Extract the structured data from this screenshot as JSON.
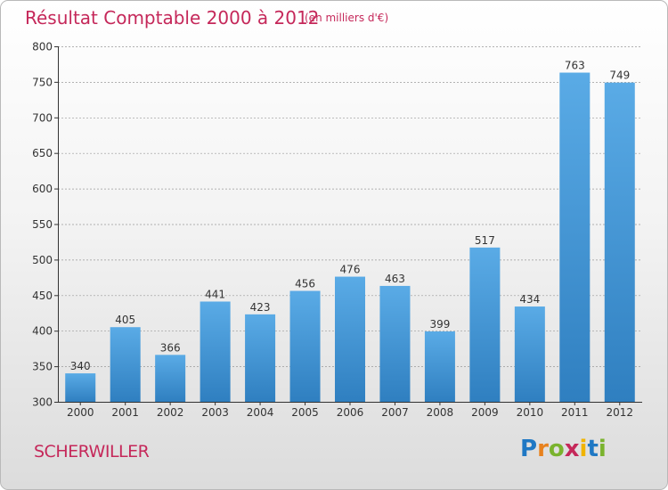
{
  "chart_data": {
    "type": "bar",
    "title": "Résultat Comptable 2000 à 2012",
    "subtitle": "(en milliers d'€)",
    "categories": [
      "2000",
      "2001",
      "2002",
      "2003",
      "2004",
      "2005",
      "2006",
      "2007",
      "2008",
      "2009",
      "2010",
      "2011",
      "2012"
    ],
    "values": [
      340,
      405,
      366,
      441,
      423,
      456,
      476,
      463,
      399,
      517,
      434,
      763,
      749
    ],
    "ylim": [
      300,
      800
    ],
    "yticks": [
      300,
      350,
      400,
      450,
      500,
      550,
      600,
      650,
      700,
      750,
      800
    ],
    "grid": true,
    "legend": "none",
    "bar_color_top": "#5aabe6",
    "bar_color_bottom": "#2f7fc0"
  },
  "footer": {
    "town": "SCHERWILLER",
    "logo": [
      {
        "char": "P",
        "color": "#1f78c4"
      },
      {
        "char": "r",
        "color": "#e8821e"
      },
      {
        "char": "o",
        "color": "#7ab32e"
      },
      {
        "char": "x",
        "color": "#c5285a"
      },
      {
        "char": "i",
        "color": "#f0b400"
      },
      {
        "char": "t",
        "color": "#1f78c4"
      },
      {
        "char": "i",
        "color": "#7ab32e"
      }
    ]
  },
  "colors": {
    "title": "#c5285a",
    "axis": "#333333",
    "grid": "#999999"
  }
}
